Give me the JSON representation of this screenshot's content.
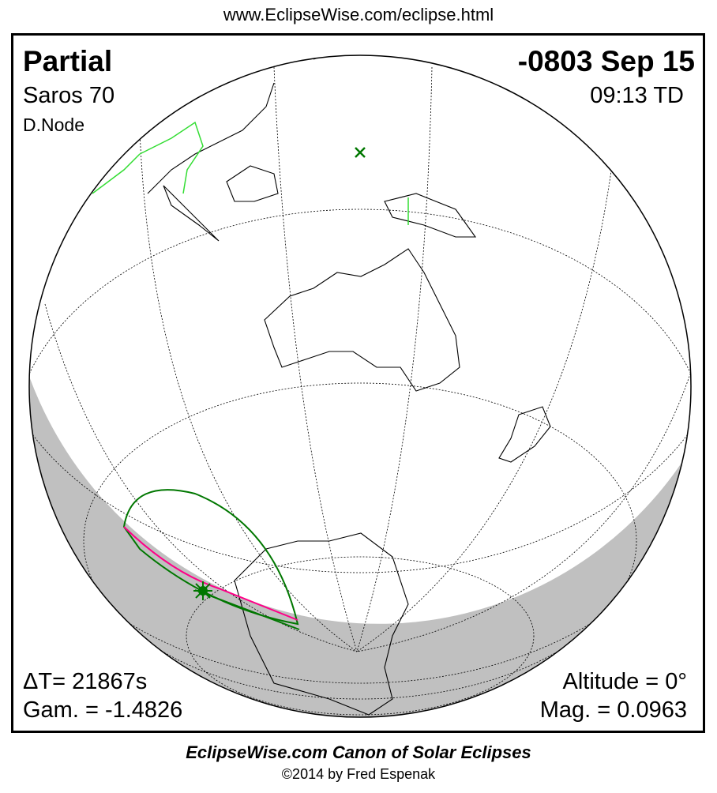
{
  "url": "www.EclipseWise.com/eclipse.html",
  "eclipse_type": "Partial",
  "date": "-0803 Sep 15",
  "saros": "Saros  70",
  "time": "09:13 TD",
  "node": "D.Node",
  "delta_t": "ΔT=  21867s",
  "gamma": "Gam. = -1.4826",
  "altitude": "Altitude =  0°",
  "magnitude": "Mag. = 0.0963",
  "footer_title": "EclipseWise.com Canon of Solar Eclipses",
  "footer_copyright": "©2014 by Fred Espenak",
  "colors": {
    "night_shadow": "#c0c0c0",
    "eclipse_limits": "#007700",
    "max_eclipse_path": "#ff0088",
    "land_highlight": "#33dd33"
  },
  "markers": {
    "greatest_eclipse": "star-icon",
    "subsolar_point": "x-icon"
  }
}
